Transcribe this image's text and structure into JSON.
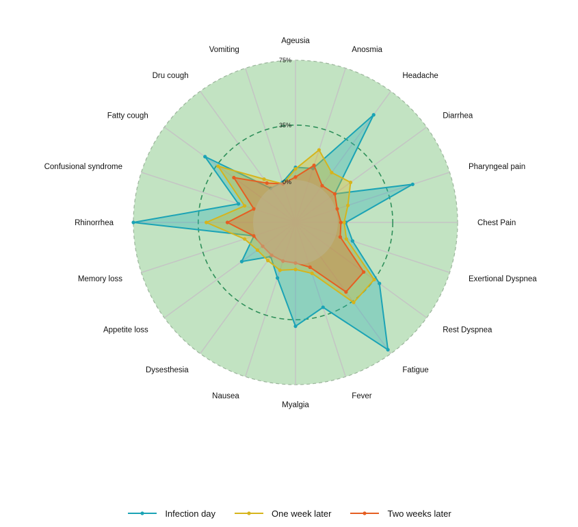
{
  "chart_data": {
    "type": "radar",
    "categories": [
      "Ageusia",
      "Anosmia",
      "Headache",
      "Diarrhea",
      "Pharyngeal pain",
      "Chest Pain",
      "Exertional Dyspnea",
      "Rest Dyspnea",
      "Fatigue",
      "Fever",
      "Myalgia",
      "Nausea",
      "Dysesthesia",
      "Appetite loss",
      "Memory loss",
      "Rhinorrhea",
      "Confusional syndrome",
      "Fatty cough",
      "Dru cough",
      "Vomiting"
    ],
    "radial_ticks": [
      {
        "label": "0%",
        "value": 0
      },
      {
        "label": "35%",
        "value": 35
      },
      {
        "label": "75%",
        "value": 75
      }
    ],
    "rlim": [
      -25,
      75
    ],
    "grid": true,
    "legend_position": "bottom",
    "series": [
      {
        "name": "Infection day",
        "color": "#1ba3b5",
        "fill": "#2aaeb8",
        "values": [
          9,
          10,
          57,
          5,
          51,
          6,
          12,
          39,
          72,
          30,
          39,
          11,
          1,
          16,
          2,
          75,
          12,
          44,
          1,
          1
        ]
      },
      {
        "name": "One week later",
        "color": "#d6b41c",
        "fill": "#d9b728",
        "values": [
          8,
          22,
          13,
          17,
          9,
          5,
          8,
          35,
          36,
          8,
          4,
          6,
          4,
          4,
          8,
          30,
          8,
          34,
          8,
          0
        ]
      },
      {
        "name": "Two weeks later",
        "color": "#e55e22",
        "fill": "#e26a2c",
        "values": [
          3,
          12,
          3,
          5,
          2,
          3,
          4,
          27,
          28,
          4,
          0,
          0,
          0,
          0,
          2,
          17,
          2,
          22,
          5,
          0
        ]
      }
    ]
  }
}
